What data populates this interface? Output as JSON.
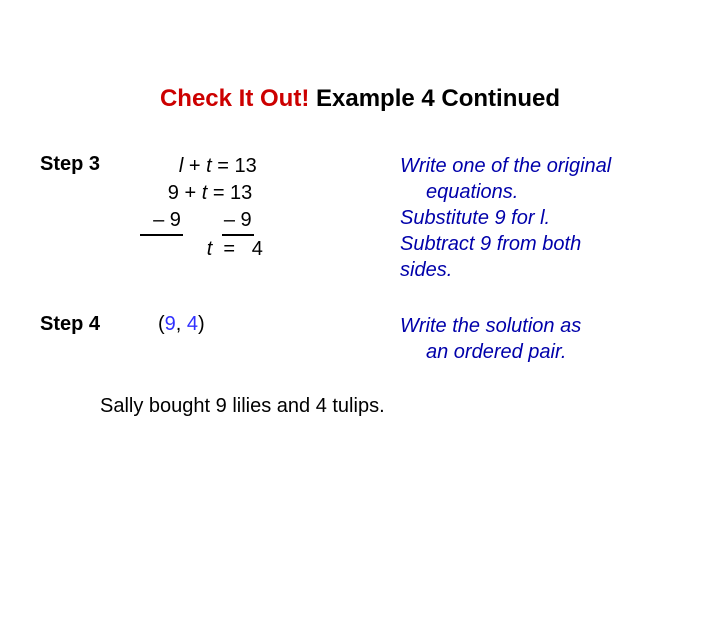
{
  "title": {
    "part_red": "Check It Out! ",
    "part_black": "Example 4 Continued"
  },
  "step3": {
    "label": "Step 3",
    "eq1_pre": "       ",
    "eq1_l": "l",
    "eq1_rest": " + ",
    "eq1_t": "t",
    "eq1_end": " = 13",
    "eq2": "     9 + ",
    "eq2_t": "t",
    "eq2_end": " = 13",
    "sub_l": "  – 9",
    "sub_gap": "       ",
    "sub_r": "– 9",
    "eq4_pre": "            ",
    "eq4_t": "t",
    "eq4_end": "  =   4",
    "note1": "Write one of the original",
    "note1b": "equations.",
    "note2": "Substitute 9 for l.",
    "note3": "Subtract 9 from both",
    "note3b": "sides."
  },
  "step4": {
    "label": "Step 4",
    "pair_open": "(",
    "pair_a": "9",
    "pair_comma": ", ",
    "pair_b": "4",
    "pair_close": ")",
    "note1": "Write the solution as",
    "note1b": "an ordered pair."
  },
  "conclusion": "Sally bought 9 lilies and 4 tulips."
}
